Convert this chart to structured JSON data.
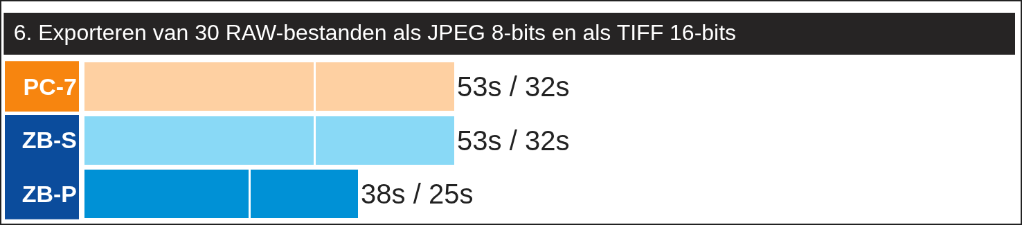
{
  "chart_data": {
    "type": "bar",
    "orientation": "horizontal",
    "stacked": true,
    "title": "6. Exporteren van 30 RAW-bestanden als JPEG 8-bits en als TIFF 16-bits",
    "categories": [
      "PC-7",
      "ZB-S",
      "ZB-P"
    ],
    "tick_labels": "y",
    "series": [
      {
        "colors": [
          "#fed0a2",
          "#89d9f6",
          "#0091d6"
        ],
        "values": [
          53,
          53,
          38
        ]
      },
      {
        "colors": [
          "#fed0a2",
          "#89d9f6",
          "#0091d6"
        ],
        "values": [
          32,
          32,
          25
        ],
        "value_labels": [
          "53s / 32s",
          "53s / 32s",
          "38s / 25s"
        ]
      }
    ]
  }
}
